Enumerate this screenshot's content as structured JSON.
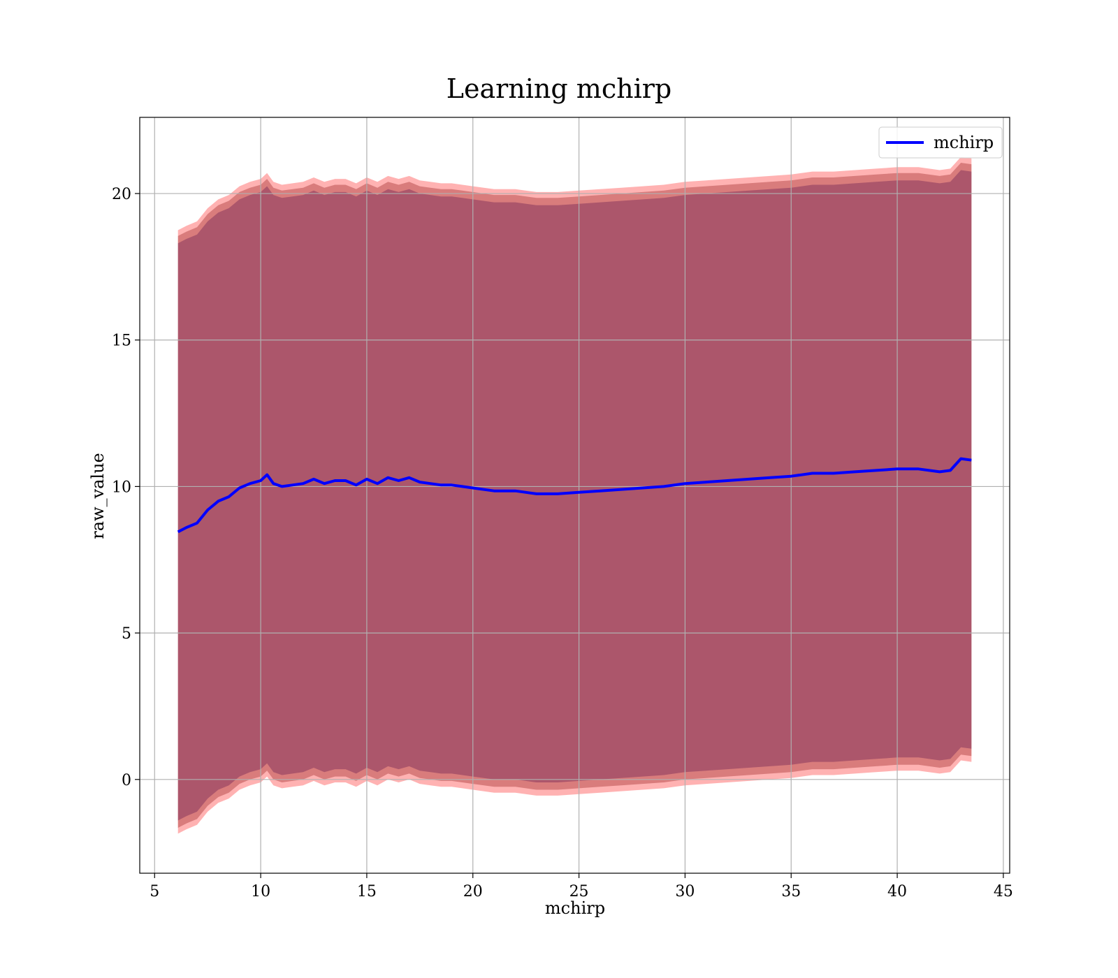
{
  "chart_data": {
    "type": "line",
    "title": "Learning mchirp",
    "xlabel": "mchirp",
    "ylabel": "raw_value",
    "xlim": [
      4.3,
      45.3
    ],
    "ylim": [
      -3.2,
      22.6
    ],
    "x_ticks": [
      5,
      10,
      15,
      20,
      25,
      30,
      35,
      40,
      45
    ],
    "y_ticks": [
      0,
      5,
      10,
      15,
      20
    ],
    "grid": true,
    "legend": {
      "position": "upper right",
      "entries": [
        "mchirp"
      ]
    },
    "series": [
      {
        "name": "mchirp",
        "color": "#0000ff",
        "x": [
          6.1,
          6.5,
          7.0,
          7.5,
          8.0,
          8.5,
          9.0,
          9.5,
          10.0,
          10.3,
          10.6,
          11.0,
          11.5,
          12.0,
          12.5,
          13.0,
          13.5,
          14.0,
          14.5,
          15.0,
          15.5,
          16.0,
          16.5,
          17.0,
          17.5,
          18.0,
          18.5,
          19.0,
          19.5,
          20.0,
          21.0,
          22.0,
          23.0,
          24.0,
          25.0,
          26.0,
          27.0,
          28.0,
          29.0,
          30.0,
          31.0,
          32.0,
          33.0,
          34.0,
          35.0,
          36.0,
          37.0,
          38.0,
          39.0,
          40.0,
          41.0,
          42.0,
          42.5,
          43.0,
          43.5
        ],
        "values": [
          8.45,
          8.6,
          8.75,
          9.2,
          9.5,
          9.65,
          9.95,
          10.1,
          10.2,
          10.4,
          10.1,
          10.0,
          10.05,
          10.1,
          10.25,
          10.1,
          10.2,
          10.2,
          10.05,
          10.25,
          10.1,
          10.3,
          10.2,
          10.3,
          10.15,
          10.1,
          10.05,
          10.05,
          10.0,
          9.95,
          9.85,
          9.85,
          9.75,
          9.75,
          9.8,
          9.85,
          9.9,
          9.95,
          10.0,
          10.1,
          10.15,
          10.2,
          10.25,
          10.3,
          10.35,
          10.45,
          10.45,
          10.5,
          10.55,
          10.6,
          10.6,
          10.5,
          10.55,
          10.95,
          10.9
        ]
      }
    ],
    "bands": [
      {
        "color": "#ff0000",
        "opacity": 0.3,
        "half_width": 10.3
      },
      {
        "color": "#800000",
        "opacity": 0.3,
        "half_width": 10.1
      },
      {
        "color": "#440044",
        "opacity": 0.3,
        "half_width": 9.85
      }
    ]
  }
}
